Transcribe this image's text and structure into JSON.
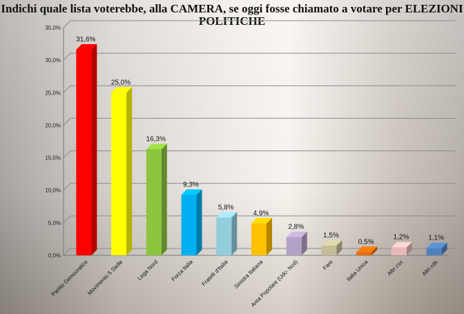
{
  "chart_data": {
    "type": "bar",
    "title": "Indichi quale lista voterebbe, alla CAMERA, se oggi fosse chiamato a votare per ELEZIONI POLITICHE",
    "categories": [
      "Partito Democratico",
      "Movimento 5 Stelle",
      "Lega Nord",
      "Forza Italia",
      "Fratelli d'Italia",
      "Sinistra Italiana",
      "Area Popolare  (Udc- Ncd)",
      "Fare",
      "Italia Unica",
      "Altri csx",
      "Altri cdx"
    ],
    "values": [
      31.6,
      25.0,
      16.3,
      9.3,
      5.8,
      4.9,
      2.8,
      1.5,
      0.5,
      1.2,
      1.1
    ],
    "value_labels": [
      "31,6%",
      "25,0%",
      "16,3%",
      "9,3%",
      "5,8%",
      "4,9%",
      "2,8%",
      "1,5%",
      "0,5%",
      "1,2%",
      "1,1%"
    ],
    "colors": [
      "#ff0000",
      "#ffff00",
      "#8cc63f",
      "#00b0f0",
      "#92cddc",
      "#ffc000",
      "#b3a2c7",
      "#c4bd97",
      "#e46c0a",
      "#e6b9b8",
      "#4f81bd"
    ],
    "yticks": [
      "0,0%",
      "5,0%",
      "10,0%",
      "15,0%",
      "20,0%",
      "25,0%",
      "30,0%",
      "35,0%"
    ],
    "ylim": [
      0,
      35
    ],
    "xlabel": "",
    "ylabel": "",
    "grid": true
  }
}
